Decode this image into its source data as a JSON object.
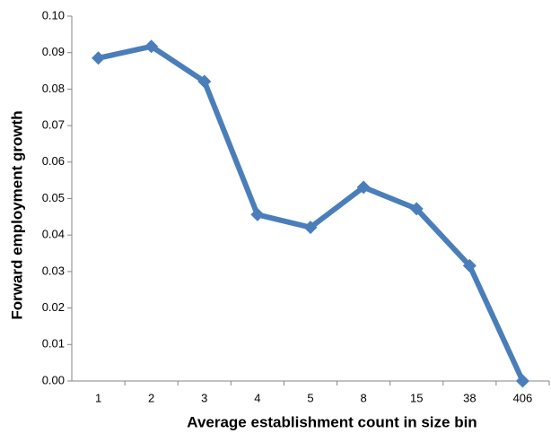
{
  "chart_data": {
    "type": "line",
    "x_label": "Average establishment count in size bin",
    "y_label": "Forward employment growth",
    "categories": [
      "1",
      "2",
      "3",
      "4",
      "5",
      "8",
      "15",
      "38",
      "406"
    ],
    "values": [
      0.0885,
      0.0917,
      0.0821,
      0.0456,
      0.0421,
      0.0531,
      0.0472,
      0.0316,
      0.0
    ],
    "color": "#4a7ebb",
    "ylim": [
      0,
      0.1
    ],
    "yticks": [
      {
        "value": 0,
        "label": "0.00"
      },
      {
        "value": 0.01,
        "label": "0.01"
      },
      {
        "value": 0.02,
        "label": "0.02"
      },
      {
        "value": 0.03,
        "label": "0.03"
      },
      {
        "value": 0.04,
        "label": "0.04"
      },
      {
        "value": 0.05,
        "label": "0.05"
      },
      {
        "value": 0.06,
        "label": "0.06"
      },
      {
        "value": 0.07,
        "label": "0.07"
      },
      {
        "value": 0.08,
        "label": "0.08"
      },
      {
        "value": 0.09,
        "label": "0.09"
      },
      {
        "value": 0.1,
        "label": "0.10"
      }
    ],
    "grid": false
  }
}
